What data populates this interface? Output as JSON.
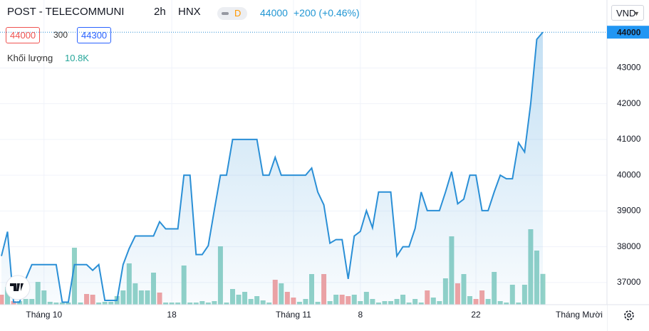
{
  "header": {
    "title": "POST - TELECOMMUNI",
    "interval": "2h",
    "exchange": "HNX",
    "badge": "D",
    "last": "44000",
    "change": "+200 (+0.46%)",
    "bid": "44000",
    "spread": "300",
    "ask": "44300",
    "currency": "VND"
  },
  "chart_data": {
    "type": "area",
    "line_color": "#2a8fd6",
    "categories": [
      null,
      null,
      null,
      null,
      null,
      null,
      null,
      "Tháng 10",
      null,
      null,
      null,
      null,
      null,
      null,
      null,
      null,
      null,
      null,
      null,
      null,
      null,
      null,
      null,
      null,
      null,
      null,
      null,
      null,
      "18",
      null,
      null,
      null,
      null,
      null,
      null,
      null,
      null,
      null,
      null,
      null,
      null,
      null,
      null,
      null,
      null,
      null,
      null,
      null,
      "Tháng 11",
      null,
      null,
      null,
      null,
      null,
      null,
      null,
      null,
      null,
      null,
      "8",
      null,
      null,
      null,
      null,
      null,
      null,
      null,
      null,
      null,
      null,
      null,
      null,
      null,
      null,
      null,
      null,
      null,
      null,
      "22",
      null,
      null,
      null,
      null,
      null,
      null,
      null,
      null,
      null,
      null,
      null
    ],
    "x_end_label": "Tháng Mười",
    "series": [
      {
        "name": "POST",
        "color": "#2a8fd6",
        "values": [
          37740,
          38420,
          36450,
          36450,
          37100,
          37500,
          37500,
          37500,
          37500,
          37500,
          36450,
          36450,
          37500,
          37500,
          37500,
          37340,
          37500,
          36500,
          36500,
          36500,
          37500,
          37950,
          38300,
          38300,
          38300,
          38300,
          38700,
          38500,
          38500,
          38500,
          40000,
          40000,
          37780,
          37780,
          38030,
          39030,
          40000,
          40000,
          41000,
          41000,
          41000,
          41000,
          41000,
          40000,
          40000,
          40500,
          40000,
          40000,
          40000,
          40000,
          40000,
          40200,
          39530,
          39170,
          38100,
          38200,
          38200,
          37100,
          38300,
          38430,
          39010,
          38530,
          39530,
          39530,
          39530,
          37740,
          38000,
          38000,
          38510,
          39530,
          39010,
          39010,
          39010,
          39530,
          40100,
          39200,
          39330,
          40000,
          40000,
          39010,
          39010,
          39530,
          40000,
          39900,
          39900,
          40910,
          40650,
          42000,
          43800,
          44000
        ]
      }
    ],
    "volume": {
      "label": "Khối lượng",
      "last_value_label": "10.8K",
      "up_color": "#92d2c7",
      "down_color": "#f2a3a3",
      "values": [
        3500,
        6250,
        1250,
        1250,
        2000,
        2000,
        8000,
        5000,
        1000,
        750,
        750,
        750,
        20000,
        750,
        3750,
        3500,
        750,
        1000,
        1000,
        3000,
        5000,
        14500,
        7500,
        5000,
        5000,
        11250,
        4250,
        750,
        750,
        750,
        13750,
        750,
        750,
        1250,
        750,
        1250,
        20500,
        750,
        5500,
        3500,
        4500,
        2000,
        3000,
        1500,
        750,
        8750,
        7500,
        4500,
        2500,
        1000,
        2000,
        10750,
        1000,
        10750,
        1250,
        3500,
        3500,
        3000,
        3500,
        1250,
        4500,
        2000,
        750,
        1250,
        1250,
        2000,
        3500,
        750,
        2000,
        750,
        5000,
        2500,
        1250,
        9250,
        24000,
        7500,
        10750,
        3000,
        2000,
        5000,
        2000,
        11500,
        1250,
        750,
        7000,
        750,
        7000,
        26500,
        19000,
        10800
      ],
      "down_indices": [
        0,
        2,
        14,
        15,
        26,
        45,
        47,
        48,
        53,
        56,
        57,
        70,
        75,
        78,
        79
      ]
    },
    "ylim": [
      36380,
      44900
    ],
    "yticks": [
      37000,
      38000,
      39000,
      40000,
      41000,
      42000,
      43000
    ]
  }
}
